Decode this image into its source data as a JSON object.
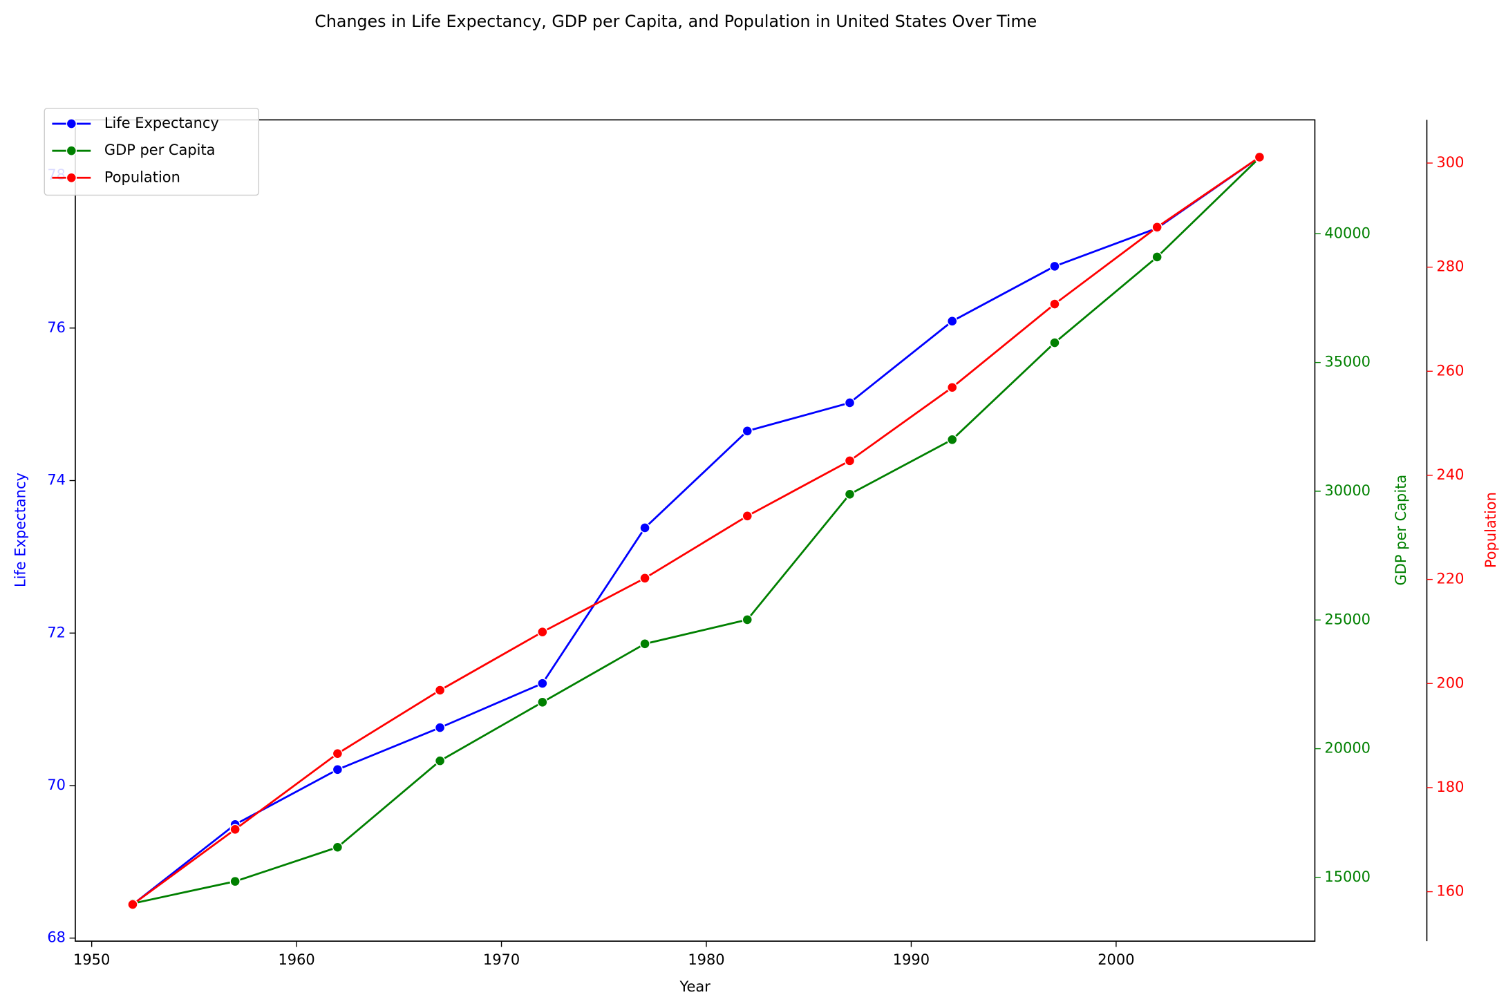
{
  "chart_data": {
    "type": "line",
    "title": "Changes in Life Expectancy, GDP per Capita, and Population in United States Over Time",
    "xlabel": "Year",
    "ylabel": "Life Expectancy",
    "y2label": "GDP per Capita",
    "y3label": "Population",
    "x": [
      1952,
      1957,
      1962,
      1967,
      1972,
      1977,
      1982,
      1987,
      1992,
      1997,
      2002,
      2007
    ],
    "xlim": [
      1949.2,
      2009.7
    ],
    "xticks": [
      1950,
      1960,
      1970,
      1980,
      1990,
      2000
    ],
    "ylim": [
      67.96,
      78.73
    ],
    "yticks": [
      68,
      70,
      72,
      74,
      76,
      78
    ],
    "y2lim": [
      12526,
      44423
    ],
    "y2ticks": [
      15000,
      20000,
      25000,
      30000,
      35000,
      40000
    ],
    "y3lim": [
      150.5,
      308.3
    ],
    "y3ticks": [
      160,
      180,
      200,
      220,
      240,
      260,
      280,
      300
    ],
    "legend": "upper left",
    "series": [
      {
        "name": "Life Expectancy",
        "color": "#0000ff",
        "axis": "y",
        "values": [
          68.44,
          69.49,
          70.21,
          70.76,
          71.34,
          73.38,
          74.65,
          75.02,
          76.09,
          76.81,
          77.31,
          78.24
        ]
      },
      {
        "name": "GDP per Capita",
        "color": "#008000",
        "axis": "y2",
        "values": [
          13990,
          14847,
          16173,
          19530,
          21806,
          24073,
          25010,
          29884,
          32004,
          35767,
          39097,
          42952
        ]
      },
      {
        "name": "Population",
        "color": "#ff0000",
        "axis": "y3",
        "values": [
          157.55,
          171.98,
          186.54,
          198.71,
          209.9,
          220.24,
          232.19,
          242.8,
          256.89,
          272.91,
          287.68,
          301.14
        ]
      }
    ]
  }
}
